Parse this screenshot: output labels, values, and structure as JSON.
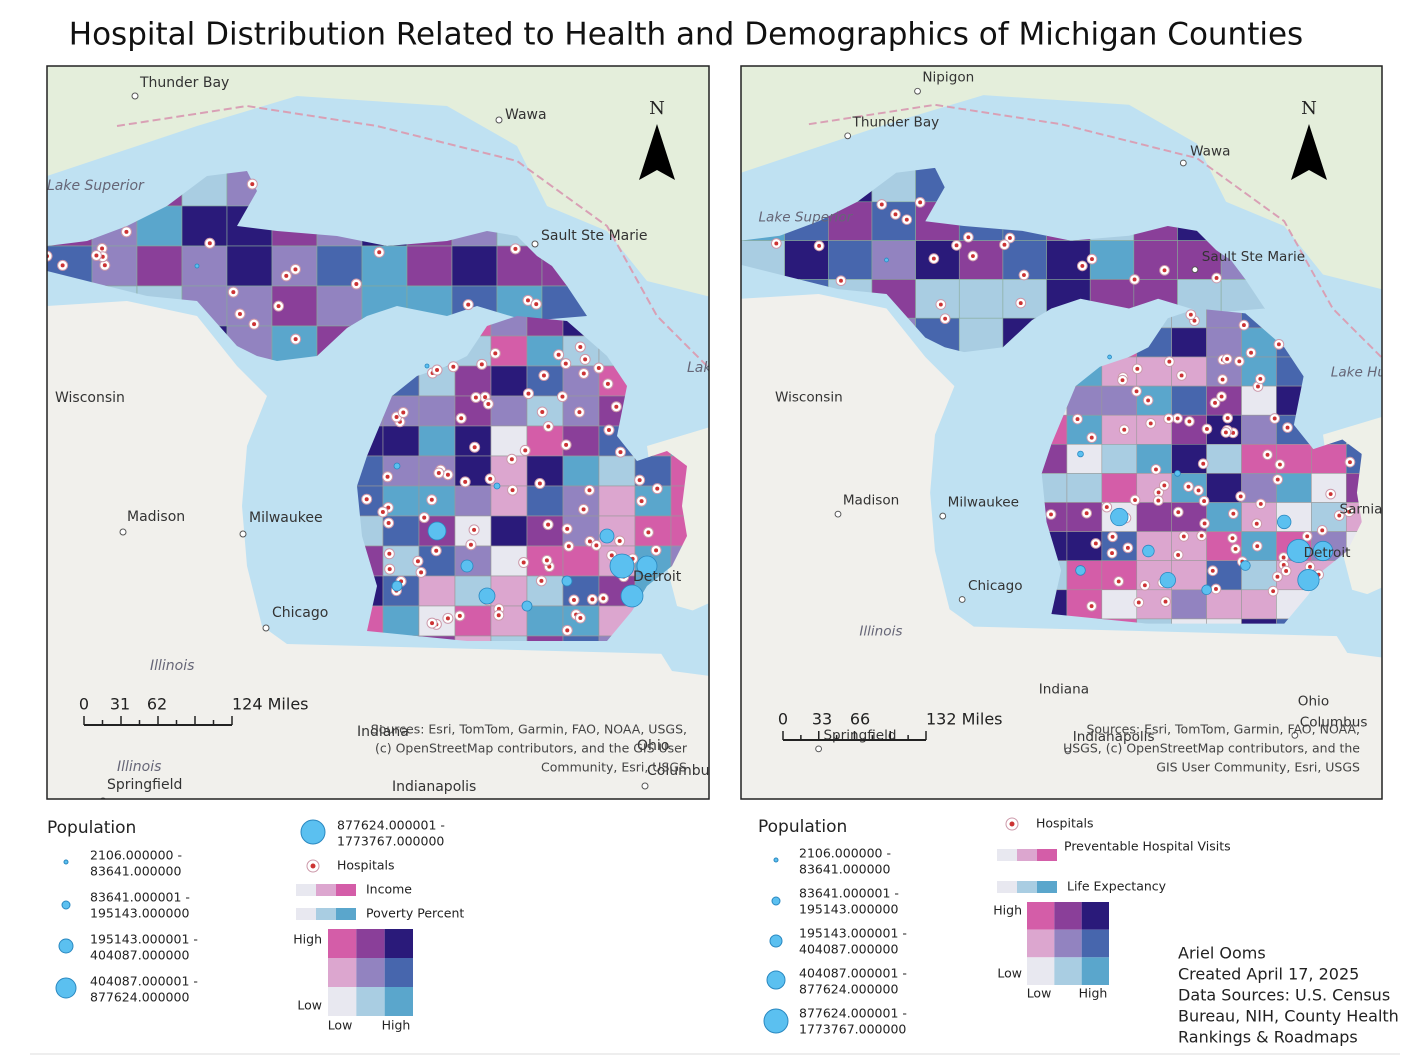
{
  "title": "Hospital Distribution Related to Health and Demographics of Michigan Counties",
  "palette": [
    [
      "#d45da8",
      "#8a3f99",
      "#2a1a7a"
    ],
    [
      "#dca6cf",
      "#9283c0",
      "#4766ad"
    ],
    [
      "#e8e8f0",
      "#a9cde2",
      "#5aa6cc"
    ]
  ],
  "maps": [
    {
      "places": [
        "Thunder Bay",
        "Wawa",
        "Lake Superior",
        "Sault Ste Marie",
        "Lake Huron",
        "Wisconsin",
        "Madison",
        "Milwaukee",
        "Chicago",
        "Illinois",
        "Illinois",
        "Springfield",
        "Indiana",
        "Indianapolis",
        "Ohio",
        "Columbus",
        "Detroit"
      ],
      "north": "N",
      "scale": [
        "0",
        "31",
        "62",
        "124 Miles"
      ],
      "sources": [
        "Sources:  Esri, TomTom, Garmin, FAO, NOAA, USGS,",
        "(c) OpenStreetMap contributors, and the GIS User",
        "Community, Esri, USGS"
      ]
    },
    {
      "places": [
        "Nipigon",
        "Thunder Bay",
        "Wawa",
        "Lake Superior",
        "Sault Ste Marie",
        "Lake Huron",
        "Wisconsin",
        "Madison",
        "Milwaukee",
        "Chicago",
        "Illinois",
        "Indiana",
        "Springfield",
        "Indianapolis",
        "Ohio",
        "Columbus",
        "Detroit",
        "Sarnia"
      ],
      "north": "N",
      "scale": [
        "0",
        "33",
        "66",
        "132 Miles"
      ],
      "sources": [
        "Sources:  Esri, TomTom, Garmin, FAO, NOAA,",
        "USGS, (c) OpenStreetMap contributors, and the",
        "GIS User Community, Esri, USGS"
      ]
    }
  ],
  "legends": [
    {
      "heading": "Population",
      "classes": [
        [
          "2106.000000 -",
          "83641.000000"
        ],
        [
          "83641.000001 -",
          "195143.000000"
        ],
        [
          "195143.000001 -",
          "404087.000000"
        ],
        [
          "404087.000001 -",
          "877624.000000"
        ],
        [
          "877624.000001 -",
          "1773767.000000"
        ]
      ],
      "hospitals": "Hospitals",
      "var1": "Income",
      "var2": "Poverty Percent",
      "high": "High",
      "low": "Low",
      "low_x": "Low",
      "high_x": "High"
    },
    {
      "heading": "Population",
      "classes": [
        [
          "2106.000000 -",
          "83641.000000"
        ],
        [
          "83641.000001 -",
          "195143.000000"
        ],
        [
          "195143.000001 -",
          "404087.000000"
        ],
        [
          "404087.000001 -",
          "877624.000000"
        ],
        [
          "877624.000001 -",
          "1773767.000000"
        ]
      ],
      "hospitals": "Hospitals",
      "var1": "Preventable Hospital Visits",
      "var2": "Life Expectancy",
      "high": "High",
      "low": "Low",
      "low_x": "Low",
      "high_x": "High"
    }
  ],
  "credits": [
    "Ariel Ooms",
    "Created April 17, 2025",
    "Data Sources: U.S. Census",
    "Bureau, NIH, County Health",
    "Rankings & Roadmaps"
  ]
}
